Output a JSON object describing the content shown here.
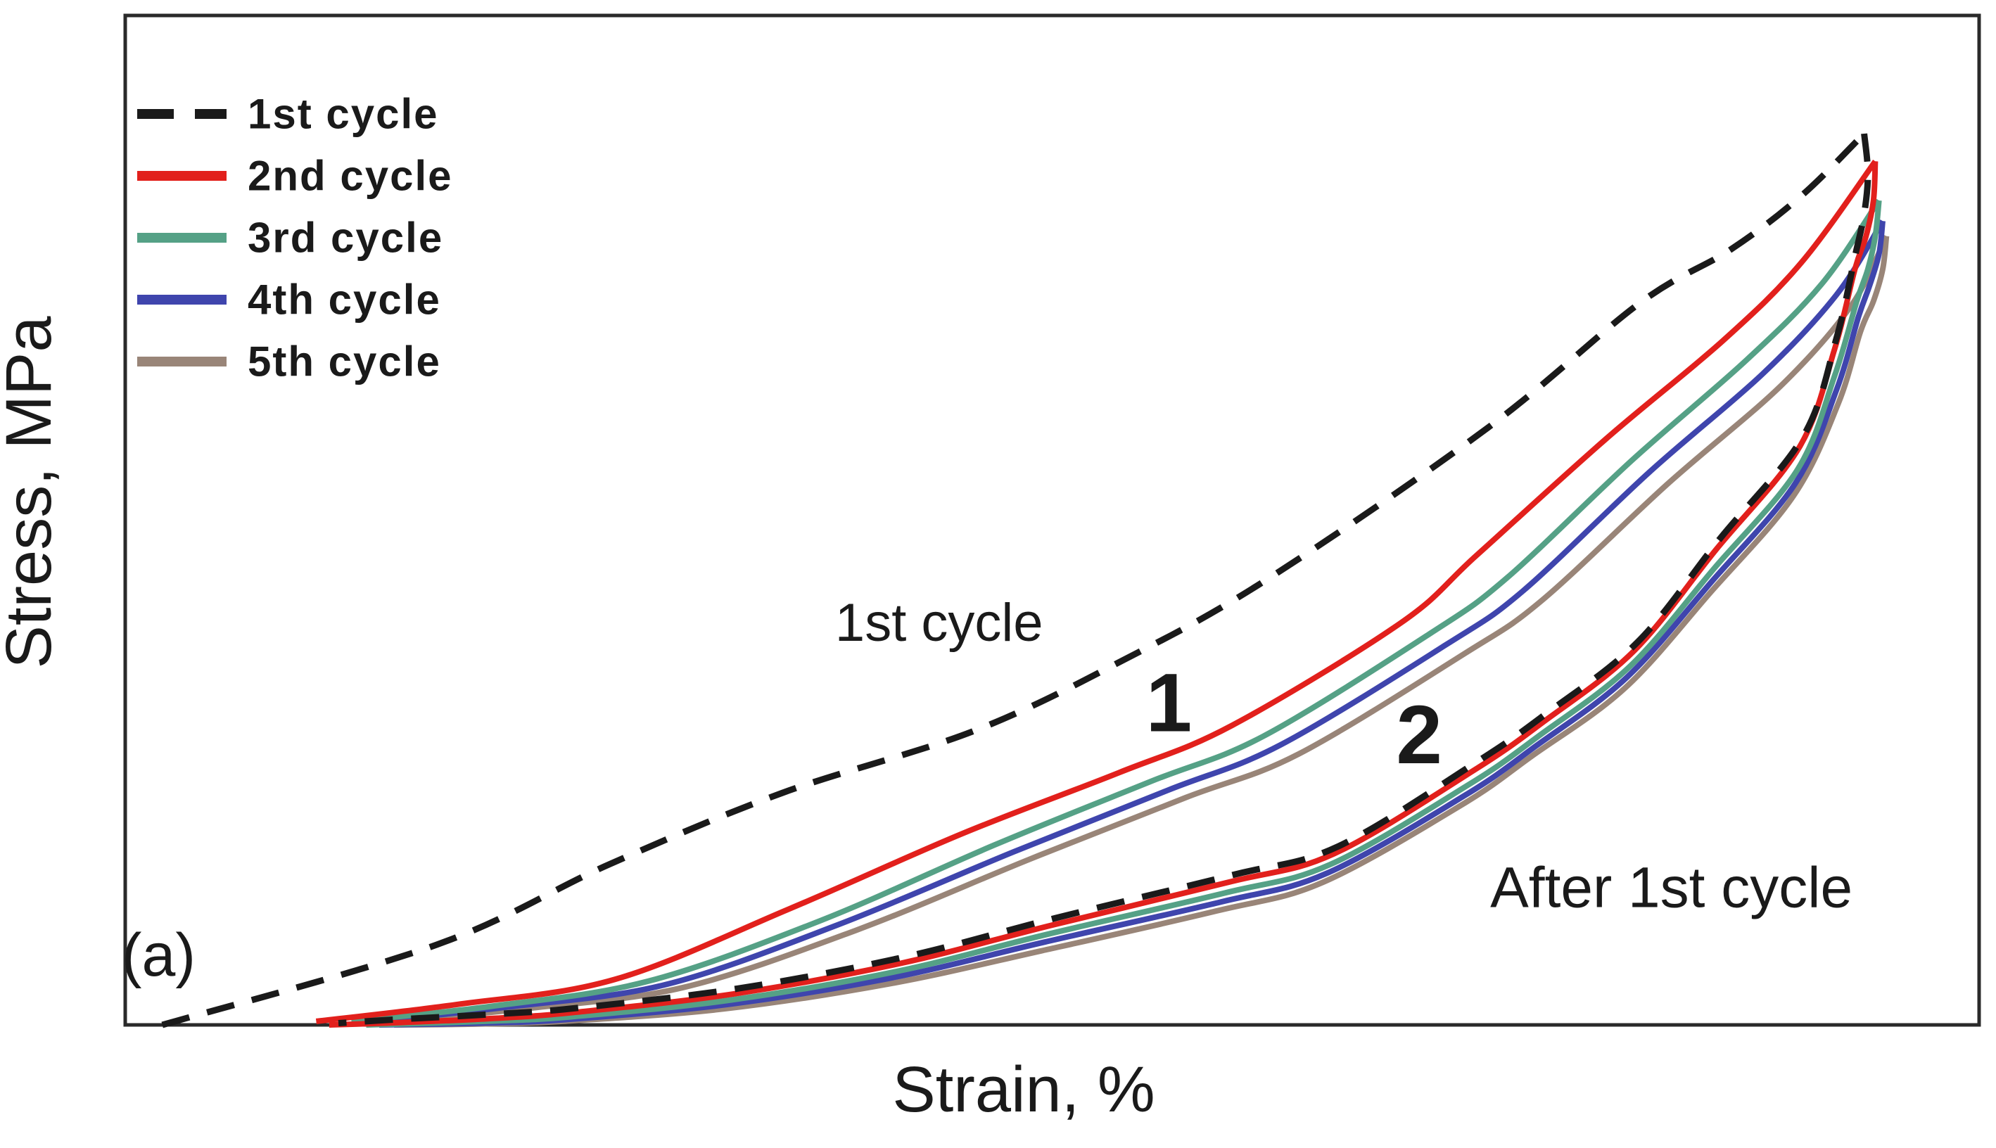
{
  "figure": {
    "panel_label": "(a)",
    "background": "#ffffff",
    "frame_color": "#2a2a2a"
  },
  "chart_data": {
    "type": "line",
    "subtype": "cyclic-stress-strain-hysteresis-loops",
    "xlabel": "Strain, %",
    "ylabel": "Stress, MPa",
    "axis_ticks": "none (qualitative axes, no numeric tick labels shown)",
    "legend_position": "top-left",
    "panel_label": "(a)",
    "units_note": "strain axis normalized 0-100 (% of max strain), stress normalized 0-1 (fraction of 1st-cycle peak stress); values estimated from pixel geometry",
    "series": [
      {
        "label": "1st cycle",
        "color": "#1a1a1a",
        "dashed": true,
        "loading": [
          [
            2.0,
            0.0
          ],
          [
            16.8,
            0.09
          ],
          [
            26.1,
            0.18
          ],
          [
            35.4,
            0.26
          ],
          [
            45.8,
            0.33
          ],
          [
            53.9,
            0.41
          ],
          [
            61.6,
            0.5
          ],
          [
            73.5,
            0.67
          ],
          [
            81.7,
            0.81
          ],
          [
            86.6,
            0.87
          ],
          [
            90.4,
            0.93
          ],
          [
            93.8,
            1.0
          ]
        ],
        "unloading": [
          [
            93.8,
            1.0
          ],
          [
            94.0,
            0.955
          ],
          [
            93.8,
            0.91
          ],
          [
            93.3,
            0.862
          ],
          [
            92.3,
            0.77
          ],
          [
            90.5,
            0.66
          ],
          [
            86.0,
            0.545
          ],
          [
            81.6,
            0.43
          ],
          [
            76.7,
            0.35
          ],
          [
            72.9,
            0.295
          ],
          [
            65.4,
            0.2
          ],
          [
            59.7,
            0.168
          ],
          [
            50.2,
            0.12
          ],
          [
            42.0,
            0.076
          ],
          [
            33.1,
            0.041
          ],
          [
            24.4,
            0.019
          ],
          [
            19.8,
            0.012
          ],
          [
            14.5,
            0.006
          ],
          [
            11.5,
            0.002
          ]
        ]
      },
      {
        "label": "2nd cycle",
        "color": "#e2201c",
        "dashed": false,
        "loading": [
          [
            10.3,
            0.004
          ],
          [
            17.9,
            0.023
          ],
          [
            26.4,
            0.051
          ],
          [
            35.8,
            0.13
          ],
          [
            45.2,
            0.215
          ],
          [
            53.6,
            0.283
          ],
          [
            59.7,
            0.336
          ],
          [
            68.8,
            0.451
          ],
          [
            72.9,
            0.527
          ],
          [
            79.9,
            0.658
          ],
          [
            86.2,
            0.768
          ],
          [
            90.4,
            0.855
          ],
          [
            94.4,
            0.969
          ]
        ],
        "unloading": [
          [
            94.4,
            0.969
          ],
          [
            94.3,
            0.925
          ],
          [
            93.9,
            0.885
          ],
          [
            93.3,
            0.848
          ],
          [
            92.2,
            0.758
          ],
          [
            90.3,
            0.648
          ],
          [
            85.8,
            0.533
          ],
          [
            81.4,
            0.42
          ],
          [
            76.5,
            0.34
          ],
          [
            72.7,
            0.285
          ],
          [
            65.2,
            0.192
          ],
          [
            59.5,
            0.16
          ],
          [
            50.0,
            0.112
          ],
          [
            41.8,
            0.069
          ],
          [
            32.9,
            0.035
          ],
          [
            24.2,
            0.014
          ],
          [
            19.6,
            0.007
          ],
          [
            14.0,
            0.002
          ],
          [
            11.0,
            0.0
          ]
        ]
      },
      {
        "label": "3rd cycle",
        "color": "#55a186",
        "dashed": false,
        "loading": [
          [
            12.2,
            0.004
          ],
          [
            19.8,
            0.021
          ],
          [
            28.2,
            0.049
          ],
          [
            37.5,
            0.117
          ],
          [
            46.9,
            0.202
          ],
          [
            55.3,
            0.273
          ],
          [
            61.4,
            0.324
          ],
          [
            70.3,
            0.438
          ],
          [
            74.5,
            0.501
          ],
          [
            81.3,
            0.634
          ],
          [
            87.4,
            0.745
          ],
          [
            91.5,
            0.831
          ],
          [
            94.6,
            0.925
          ]
        ],
        "unloading": [
          [
            94.6,
            0.925
          ],
          [
            94.4,
            0.885
          ],
          [
            94.0,
            0.848
          ],
          [
            93.4,
            0.812
          ],
          [
            92.2,
            0.728
          ],
          [
            90.2,
            0.623
          ],
          [
            85.7,
            0.512
          ],
          [
            81.2,
            0.403
          ],
          [
            76.3,
            0.325
          ],
          [
            72.5,
            0.27
          ],
          [
            65.0,
            0.18
          ],
          [
            59.3,
            0.148
          ],
          [
            49.8,
            0.102
          ],
          [
            41.6,
            0.06
          ],
          [
            32.7,
            0.028
          ],
          [
            24.0,
            0.009
          ],
          [
            19.4,
            0.004
          ],
          [
            13.0,
            0.0
          ]
        ]
      },
      {
        "label": "4th cycle",
        "color": "#3f45ad",
        "dashed": false,
        "loading": [
          [
            13.0,
            0.003
          ],
          [
            20.6,
            0.02
          ],
          [
            29.1,
            0.045
          ],
          [
            38.4,
            0.112
          ],
          [
            47.9,
            0.194
          ],
          [
            56.2,
            0.263
          ],
          [
            62.3,
            0.314
          ],
          [
            71.2,
            0.426
          ],
          [
            75.4,
            0.487
          ],
          [
            82.2,
            0.62
          ],
          [
            88.3,
            0.73
          ],
          [
            92.3,
            0.819
          ],
          [
            94.8,
            0.902
          ]
        ],
        "unloading": [
          [
            94.8,
            0.902
          ],
          [
            94.6,
            0.865
          ],
          [
            94.1,
            0.83
          ],
          [
            93.5,
            0.795
          ],
          [
            92.3,
            0.712
          ],
          [
            90.1,
            0.608
          ],
          [
            85.6,
            0.498
          ],
          [
            81.0,
            0.39
          ],
          [
            76.1,
            0.313
          ],
          [
            72.3,
            0.258
          ],
          [
            64.8,
            0.17
          ],
          [
            59.1,
            0.138
          ],
          [
            49.6,
            0.093
          ],
          [
            41.4,
            0.053
          ],
          [
            32.5,
            0.023
          ],
          [
            23.8,
            0.006
          ],
          [
            19.2,
            0.002
          ],
          [
            13.7,
            0.0
          ]
        ]
      },
      {
        "label": "5th cycle",
        "color": "#998578",
        "dashed": false,
        "loading": [
          [
            13.9,
            0.003
          ],
          [
            21.5,
            0.018
          ],
          [
            30.1,
            0.042
          ],
          [
            39.4,
            0.106
          ],
          [
            48.8,
            0.186
          ],
          [
            57.2,
            0.255
          ],
          [
            63.3,
            0.304
          ],
          [
            72.2,
            0.416
          ],
          [
            76.4,
            0.476
          ],
          [
            83.2,
            0.607
          ],
          [
            89.3,
            0.717
          ],
          [
            93.1,
            0.807
          ],
          [
            95.0,
            0.885
          ]
        ],
        "unloading": [
          [
            95.0,
            0.885
          ],
          [
            94.8,
            0.848
          ],
          [
            94.3,
            0.812
          ],
          [
            93.6,
            0.778
          ],
          [
            92.4,
            0.697
          ],
          [
            90.0,
            0.594
          ],
          [
            85.5,
            0.485
          ],
          [
            80.9,
            0.378
          ],
          [
            75.9,
            0.302
          ],
          [
            72.1,
            0.247
          ],
          [
            64.6,
            0.16
          ],
          [
            58.9,
            0.128
          ],
          [
            49.4,
            0.083
          ],
          [
            41.2,
            0.046
          ],
          [
            32.3,
            0.018
          ],
          [
            23.6,
            0.004
          ],
          [
            19.0,
            0.001
          ],
          [
            14.5,
            0.0
          ]
        ]
      }
    ],
    "annotations": [
      {
        "text": "1st cycle",
        "anchor": [
          43.9,
          0.451
        ]
      },
      {
        "text": "1",
        "anchor": [
          56.3,
          0.361
        ]
      },
      {
        "text": "2",
        "anchor": [
          69.8,
          0.325
        ]
      },
      {
        "text": "After 1st cycle",
        "anchor": [
          83.4,
          0.154
        ]
      },
      {
        "text": "(a)",
        "anchor": [
          1.8,
          0.078
        ]
      }
    ]
  }
}
